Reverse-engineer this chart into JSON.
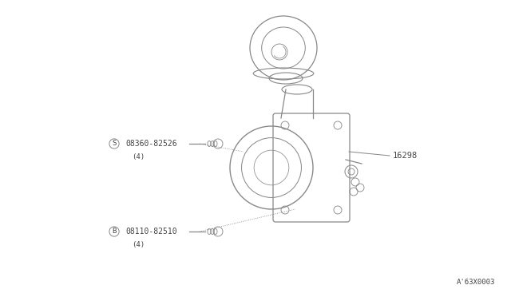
{
  "bg_color": "#ffffff",
  "line_color": "#888888",
  "text_color": "#444444",
  "part_label_1": "16298",
  "part_label_2_sym": "S",
  "part_label_2": "08360-82526",
  "part_label_2_qty": "(4)",
  "part_label_3_sym": "B",
  "part_label_3": "08110-82510",
  "part_label_3_qty": "(4)",
  "diagram_id": "A'63X0003",
  "fig_width": 6.4,
  "fig_height": 3.72
}
